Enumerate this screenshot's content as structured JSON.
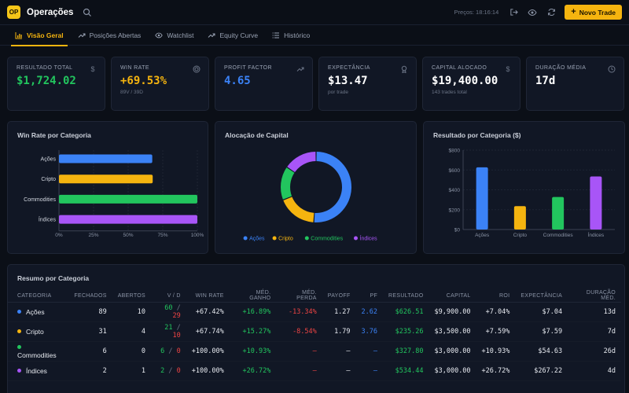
{
  "app": {
    "logo": "OP",
    "title": "Operações",
    "prices_label": "Preços: 18:16:14",
    "new_trade": "Novo Trade"
  },
  "tabs": [
    {
      "label": "Visão Geral",
      "active": true
    },
    {
      "label": "Posições Abertas"
    },
    {
      "label": "Watchlist"
    },
    {
      "label": "Equity Curve"
    },
    {
      "label": "Histórico"
    }
  ],
  "kpis": [
    {
      "label": "RESULTADO TOTAL",
      "value": "$1,724.02",
      "sub": "",
      "color": "#22c55e",
      "icon": "dollar-icon"
    },
    {
      "label": "WIN RATE",
      "value": "+69.53%",
      "sub": "89V / 39D",
      "color": "#f5b40f",
      "icon": "target-icon"
    },
    {
      "label": "PROFIT FACTOR",
      "value": "4.65",
      "sub": "",
      "color": "#3b82f6",
      "icon": "trend-up-icon"
    },
    {
      "label": "EXPECTÂNCIA",
      "value": "$13.47",
      "sub": "por trade",
      "color": "#ffffff",
      "icon": "award-icon"
    },
    {
      "label": "CAPITAL ALOCADO",
      "value": "$19,400.00",
      "sub": "143 trades total",
      "color": "#ffffff",
      "icon": "dollar-icon"
    },
    {
      "label": "DURAÇÃO MÉDIA",
      "value": "17d",
      "sub": "",
      "color": "#ffffff",
      "icon": "clock-icon"
    }
  ],
  "panels": {
    "winrate_title": "Win Rate por Categoria",
    "alloc_title": "Alocação de Capital",
    "result_title": "Resultado por Categoria ($)"
  },
  "chart_data": [
    {
      "type": "bar",
      "orientation": "horizontal",
      "title": "Win Rate por Categoria",
      "categories": [
        "Ações",
        "Cripto",
        "Commodities",
        "Índices"
      ],
      "values": [
        67.42,
        67.74,
        100,
        100
      ],
      "colors": [
        "#3b82f6",
        "#f5b40f",
        "#22c55e",
        "#a855f7"
      ],
      "xlim": [
        0,
        100
      ],
      "xticks": [
        "0%",
        "25%",
        "50%",
        "75%",
        "100%"
      ]
    },
    {
      "type": "pie",
      "title": "Alocação de Capital",
      "labels": [
        "Ações",
        "Cripto",
        "Commodities",
        "Índices"
      ],
      "values": [
        9900,
        3500,
        3000,
        3000
      ],
      "colors": [
        "#3b82f6",
        "#f5b40f",
        "#22c55e",
        "#a855f7"
      ],
      "legend": "bottom"
    },
    {
      "type": "bar",
      "title": "Resultado por Categoria ($)",
      "categories": [
        "Ações",
        "Cripto",
        "Commodities",
        "Índices"
      ],
      "values": [
        626.51,
        235.26,
        327.8,
        534.44
      ],
      "colors": [
        "#3b82f6",
        "#f5b40f",
        "#22c55e",
        "#a855f7"
      ],
      "ylim": [
        0,
        800
      ],
      "yticks": [
        "$0",
        "$200",
        "$400",
        "$600",
        "$800"
      ]
    }
  ],
  "summary": {
    "title": "Resumo por Categoria",
    "headers": [
      "CATEGORIA",
      "FECHADOS",
      "ABERTOS",
      "V / D",
      "WIN RATE",
      "MÉD. GANHO",
      "MÉD. PERDA",
      "PAYOFF",
      "PF",
      "RESULTADO",
      "CAPITAL",
      "ROI",
      "EXPECTÂNCIA",
      "DURAÇÃO MÉD."
    ],
    "rows": [
      {
        "cat": "Ações",
        "color": "#3b82f6",
        "fechados": "89",
        "abertos": "10",
        "v": "60",
        "d": "29",
        "winrate": "+67.42%",
        "ganho": "+16.89%",
        "perda": "-13.34%",
        "payoff": "1.27",
        "pf": "2.62",
        "resultado": "$626.51",
        "capital": "$9,900.00",
        "roi": "+7.04%",
        "expect": "$7.04",
        "duracao": "13d"
      },
      {
        "cat": "Cripto",
        "color": "#f5b40f",
        "fechados": "31",
        "abertos": "4",
        "v": "21",
        "d": "10",
        "winrate": "+67.74%",
        "ganho": "+15.27%",
        "perda": "-8.54%",
        "payoff": "1.79",
        "pf": "3.76",
        "resultado": "$235.26",
        "capital": "$3,500.00",
        "roi": "+7.59%",
        "expect": "$7.59",
        "duracao": "7d"
      },
      {
        "cat": "Commodities",
        "color": "#22c55e",
        "fechados": "6",
        "abertos": "0",
        "v": "6",
        "d": "0",
        "winrate": "+100.00%",
        "ganho": "+10.93%",
        "perda": "—",
        "payoff": "—",
        "pf": "—",
        "resultado": "$327.80",
        "capital": "$3,000.00",
        "roi": "+10.93%",
        "expect": "$54.63",
        "duracao": "26d"
      },
      {
        "cat": "Índices",
        "color": "#a855f7",
        "fechados": "2",
        "abertos": "1",
        "v": "2",
        "d": "0",
        "winrate": "+100.00%",
        "ganho": "+26.72%",
        "perda": "—",
        "payoff": "—",
        "pf": "—",
        "resultado": "$534.44",
        "capital": "$3,000.00",
        "roi": "+26.72%",
        "expect": "$267.22",
        "duracao": "4d"
      }
    ]
  }
}
